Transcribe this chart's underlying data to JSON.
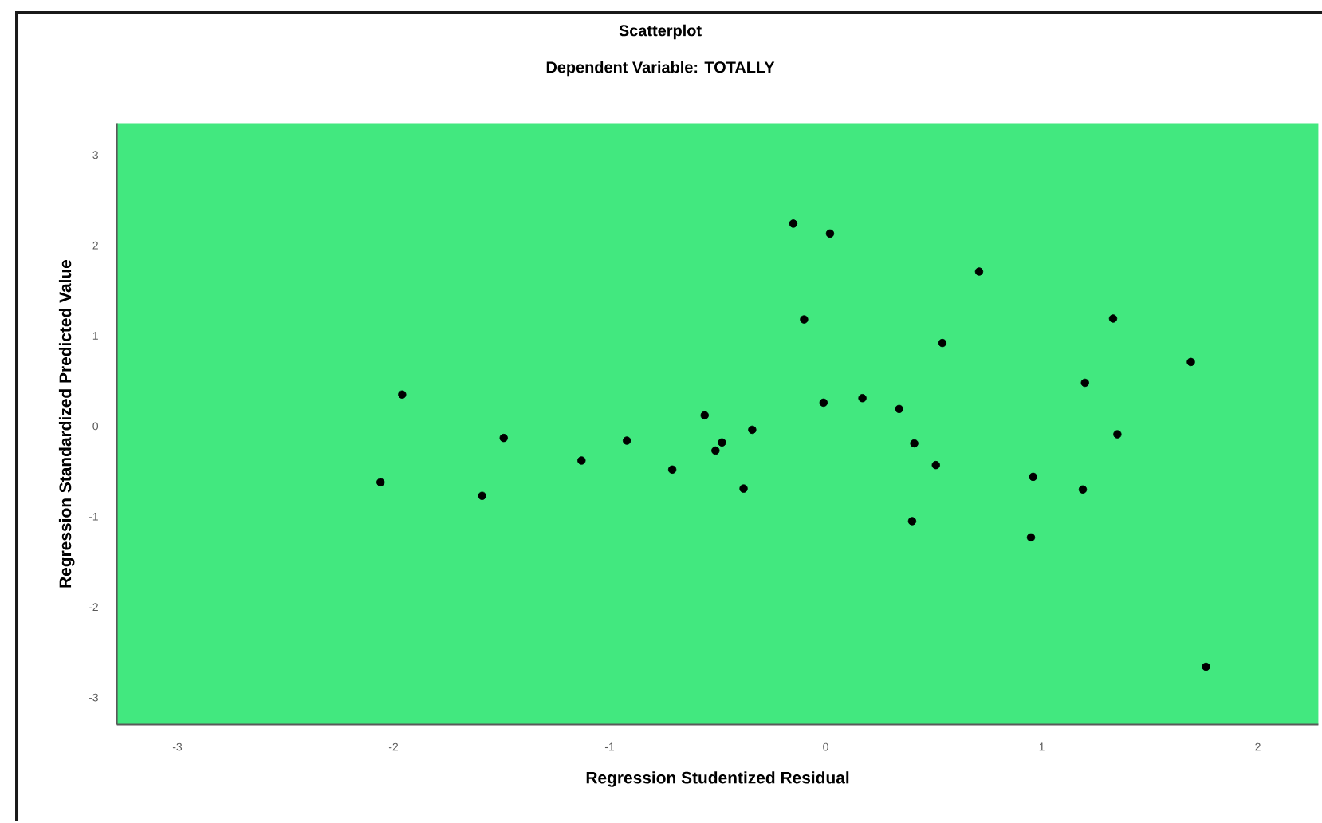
{
  "chart_data": {
    "type": "scatter",
    "title": "Scatterplot",
    "subtitle": "Dependent Variable: TOTALLY",
    "xlabel": "Regression Studentized Residual",
    "ylabel": "Regression Standardized Predicted Value",
    "x": [
      -2.06,
      -1.96,
      -1.59,
      -1.49,
      -1.13,
      -0.92,
      -0.71,
      -0.56,
      -0.48,
      -0.51,
      -0.38,
      -0.34,
      -0.15,
      0.02,
      -0.1,
      -0.01,
      0.17,
      0.34,
      0.41,
      0.51,
      0.4,
      0.54,
      0.71,
      0.96,
      0.95,
      1.19,
      1.2,
      1.33,
      1.35,
      1.69,
      1.76
    ],
    "values": [
      -0.62,
      0.35,
      -0.77,
      -0.13,
      -0.38,
      -0.16,
      -0.48,
      0.12,
      -0.18,
      -0.27,
      -0.69,
      -0.04,
      2.24,
      2.13,
      1.18,
      0.26,
      0.31,
      0.19,
      -0.19,
      -0.43,
      -1.05,
      0.92,
      1.71,
      -0.56,
      -1.23,
      -0.7,
      0.48,
      1.19,
      -0.09,
      0.71,
      -2.66
    ],
    "color": "#000000",
    "marker": "circle",
    "xlim": [
      -3.28,
      2.28
    ],
    "ylim": [
      -3.3,
      3.35
    ],
    "xticks": [
      -3,
      -2,
      -1,
      0,
      1,
      2
    ],
    "yticks": [
      -3,
      -2,
      -1,
      0,
      1,
      2,
      3
    ]
  }
}
